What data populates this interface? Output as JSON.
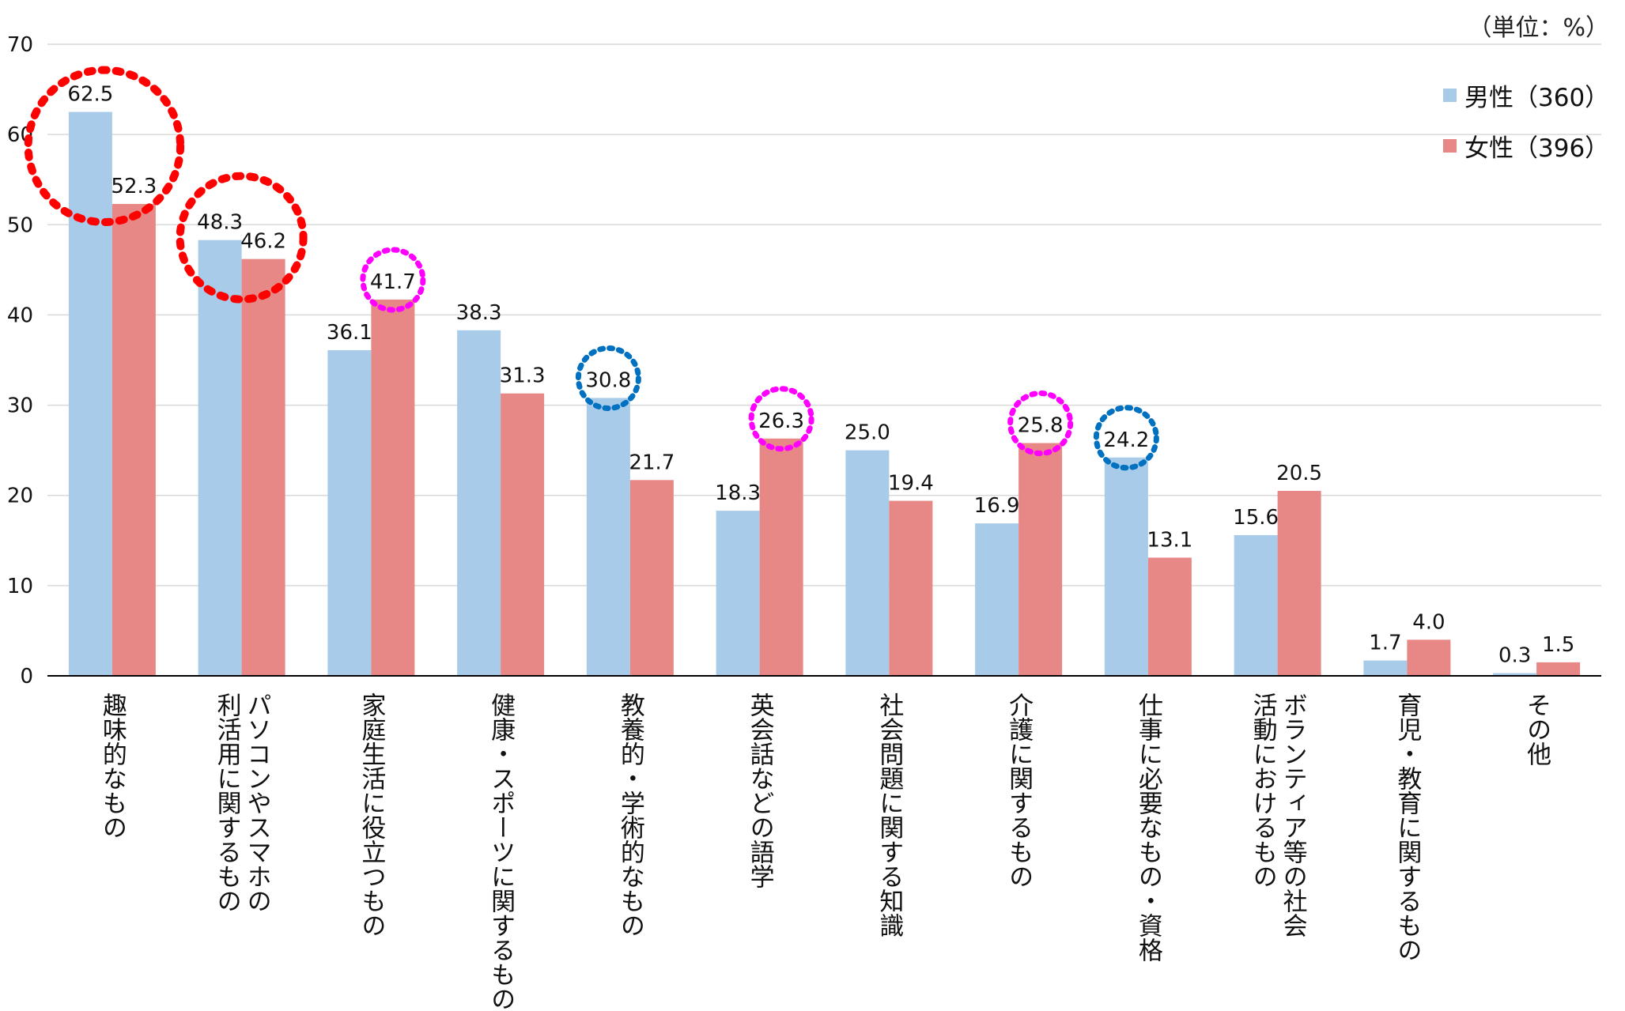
{
  "unit_note": "（単位：%）",
  "colors": {
    "male": "#a7cbe9",
    "female": "#e88886",
    "grid": "#d9d9d9",
    "axis": "#000000",
    "highlight_red": "#ff0000",
    "highlight_magenta": "#ff00ff",
    "highlight_blue": "#0070c0"
  },
  "chart_data": {
    "type": "bar",
    "title": "",
    "xlabel": "",
    "ylabel": "",
    "ylim": [
      0,
      70
    ],
    "yticks": [
      "0",
      "10",
      "20",
      "30",
      "40",
      "50",
      "60",
      "70"
    ],
    "grid": true,
    "legend_position": "top-right",
    "categories": [
      "趣味的なもの",
      "パソコンやスマホの\n利活用に関するもの",
      "家庭生活に役立つもの",
      "健康・スポーツに関するもの",
      "教養的・学術的なもの",
      "英会話などの語学",
      "社会問題に関する知識",
      "介護に関するもの",
      "仕事に必要なもの・資格",
      "ボランティア等の社会\n活動におけるもの",
      "育児・教育に関するもの",
      "その他"
    ],
    "series": [
      {
        "name": "男性（360）",
        "values": [
          62.5,
          48.3,
          36.1,
          38.3,
          30.8,
          18.3,
          25.0,
          16.9,
          24.2,
          15.6,
          1.7,
          0.3
        ],
        "labels": [
          "62.5",
          "48.3",
          "36.1",
          "38.3",
          "30.8",
          "18.3",
          "25.0",
          "16.9",
          "24.2",
          "15.6",
          "1.7",
          "0.3"
        ]
      },
      {
        "name": "女性（396）",
        "values": [
          52.3,
          46.2,
          41.7,
          31.3,
          21.7,
          26.3,
          19.4,
          25.8,
          13.1,
          20.5,
          4.0,
          1.5
        ],
        "labels": [
          "52.3",
          "46.2",
          "41.7",
          "31.3",
          "21.7",
          "26.3",
          "19.4",
          "25.8",
          "13.1",
          "20.5",
          "4.0",
          "1.5"
        ]
      }
    ],
    "annotations": [
      {
        "type": "dotted-circle",
        "color": "red",
        "category_index": 0,
        "series": "both"
      },
      {
        "type": "dotted-circle",
        "color": "red",
        "category_index": 1,
        "series": "both"
      },
      {
        "type": "dotted-circle",
        "color": "magenta",
        "category_index": 2,
        "series": 1
      },
      {
        "type": "dotted-circle",
        "color": "blue",
        "category_index": 4,
        "series": 0
      },
      {
        "type": "dotted-circle",
        "color": "magenta",
        "category_index": 5,
        "series": 1
      },
      {
        "type": "dotted-circle",
        "color": "magenta",
        "category_index": 7,
        "series": 1
      },
      {
        "type": "dotted-circle",
        "color": "blue",
        "category_index": 8,
        "series": 0
      }
    ]
  }
}
